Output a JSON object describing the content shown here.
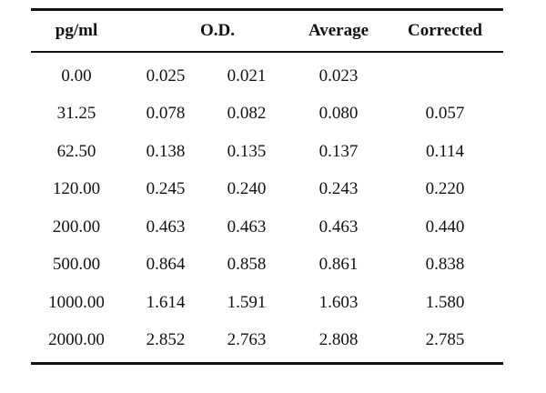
{
  "table": {
    "headers": {
      "concentration": "pg/ml",
      "od": "O.D.",
      "average": "Average",
      "corrected": "Corrected"
    },
    "rows": [
      {
        "conc": "0.00",
        "od1": "0.025",
        "od2": "0.021",
        "avg": "0.023",
        "corr": ""
      },
      {
        "conc": "31.25",
        "od1": "0.078",
        "od2": "0.082",
        "avg": "0.080",
        "corr": "0.057"
      },
      {
        "conc": "62.50",
        "od1": "0.138",
        "od2": "0.135",
        "avg": "0.137",
        "corr": "0.114"
      },
      {
        "conc": "120.00",
        "od1": "0.245",
        "od2": "0.240",
        "avg": "0.243",
        "corr": "0.220"
      },
      {
        "conc": "200.00",
        "od1": "0.463",
        "od2": "0.463",
        "avg": "0.463",
        "corr": "0.440"
      },
      {
        "conc": "500.00",
        "od1": "0.864",
        "od2": "0.858",
        "avg": "0.861",
        "corr": "0.838"
      },
      {
        "conc": "1000.00",
        "od1": "1.614",
        "od2": "1.591",
        "avg": "1.603",
        "corr": "1.580"
      },
      {
        "conc": "2000.00",
        "od1": "2.852",
        "od2": "2.763",
        "avg": "2.808",
        "corr": "2.785"
      }
    ]
  }
}
